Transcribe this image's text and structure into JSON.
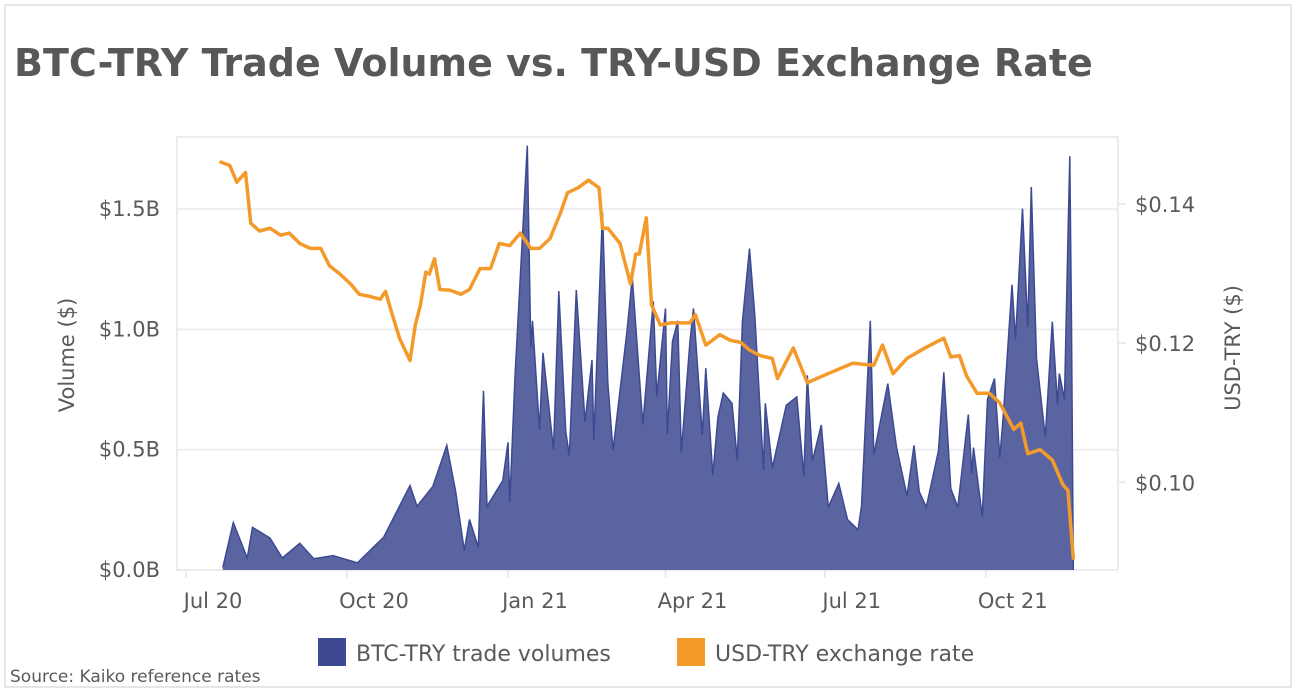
{
  "chart_data": {
    "type": "area+line",
    "title": "BTC-TRY Trade Volume vs. TRY-USD Exchange Rate",
    "source": "Source: Kaiko reference rates",
    "x_ticks": [
      {
        "date": "2020-07-01",
        "label": "Jul 20"
      },
      {
        "date": "2020-10-01",
        "label": "Oct 20"
      },
      {
        "date": "2021-01-01",
        "label": "Jan 21"
      },
      {
        "date": "2021-04-01",
        "label": "Apr 21"
      },
      {
        "date": "2021-07-01",
        "label": "Jul 21"
      },
      {
        "date": "2021-10-01",
        "label": "Oct 21"
      }
    ],
    "y_left": {
      "label": "Volume ($)",
      "unit": "billion USD",
      "range": [
        0,
        1.8
      ],
      "ticks": [
        {
          "v": 0,
          "label": "$0.0B"
        },
        {
          "v": 0.5,
          "label": "$0.5B"
        },
        {
          "v": 1.0,
          "label": "$1.0B"
        },
        {
          "v": 1.5,
          "label": "$1.5B"
        }
      ]
    },
    "y_right": {
      "label": "USD-TRY ($)",
      "range": [
        0.0874,
        0.1496
      ],
      "ticks": [
        {
          "v": 0.1,
          "label": "$0.10"
        },
        {
          "v": 0.12,
          "label": "$0.12"
        },
        {
          "v": 0.14,
          "label": "$0.14"
        }
      ]
    },
    "grid": true,
    "legend_position": "bottom",
    "series": [
      {
        "name": "BTC-TRY trade volumes",
        "type": "area",
        "axis": "left",
        "color": "#3d4a93",
        "fill": "#5a64a0",
        "points": [
          [
            "2020-07-22",
            0.01
          ],
          [
            "2020-07-28",
            0.197
          ],
          [
            "2020-08-05",
            0.05
          ],
          [
            "2020-08-08",
            0.177
          ],
          [
            "2020-08-18",
            0.133
          ],
          [
            "2020-08-25",
            0.05
          ],
          [
            "2020-09-04",
            0.111
          ],
          [
            "2020-09-12",
            0.047
          ],
          [
            "2020-09-23",
            0.06
          ],
          [
            "2020-10-07",
            0.03
          ],
          [
            "2020-10-22",
            0.137
          ],
          [
            "2020-10-28",
            0.223
          ],
          [
            "2020-11-06",
            0.351
          ],
          [
            "2020-11-10",
            0.265
          ],
          [
            "2020-11-19",
            0.347
          ],
          [
            "2020-11-27",
            0.518
          ],
          [
            "2020-12-02",
            0.33
          ],
          [
            "2020-12-07",
            0.081
          ],
          [
            "2020-12-10",
            0.21
          ],
          [
            "2020-12-15",
            0.094
          ],
          [
            "2020-12-18",
            0.745
          ],
          [
            "2020-12-20",
            0.265
          ],
          [
            "2020-12-29",
            0.372
          ],
          [
            "2021-01-01",
            0.531
          ],
          [
            "2021-01-02",
            0.282
          ],
          [
            "2021-01-05",
            0.805
          ],
          [
            "2021-01-12",
            1.764
          ],
          [
            "2021-01-14",
            0.925
          ],
          [
            "2021-01-15",
            1.036
          ],
          [
            "2021-01-19",
            0.582
          ],
          [
            "2021-01-21",
            0.903
          ],
          [
            "2021-01-27",
            0.5
          ],
          [
            "2021-01-30",
            1.16
          ],
          [
            "2021-02-03",
            0.574
          ],
          [
            "2021-02-05",
            0.475
          ],
          [
            "2021-02-09",
            1.164
          ],
          [
            "2021-02-14",
            0.616
          ],
          [
            "2021-02-18",
            0.873
          ],
          [
            "2021-02-19",
            0.539
          ],
          [
            "2021-02-24",
            1.486
          ],
          [
            "2021-02-27",
            0.779
          ],
          [
            "2021-03-02",
            0.497
          ],
          [
            "2021-03-10",
            0.993
          ],
          [
            "2021-03-13",
            1.216
          ],
          [
            "2021-03-19",
            0.604
          ],
          [
            "2021-03-25",
            1.117
          ],
          [
            "2021-03-27",
            0.723
          ],
          [
            "2021-04-01",
            1.087
          ],
          [
            "2021-04-02",
            0.565
          ],
          [
            "2021-04-05",
            0.951
          ],
          [
            "2021-04-08",
            1.036
          ],
          [
            "2021-04-10",
            0.488
          ],
          [
            "2021-04-15",
            0.951
          ],
          [
            "2021-04-17",
            1.087
          ],
          [
            "2021-04-22",
            0.561
          ],
          [
            "2021-04-24",
            0.839
          ],
          [
            "2021-04-28",
            0.394
          ],
          [
            "2021-05-01",
            0.637
          ],
          [
            "2021-05-04",
            0.736
          ],
          [
            "2021-05-09",
            0.693
          ],
          [
            "2021-05-12",
            0.458
          ],
          [
            "2021-05-15",
            1.036
          ],
          [
            "2021-05-19",
            1.336
          ],
          [
            "2021-05-22",
            1.058
          ],
          [
            "2021-05-27",
            0.415
          ],
          [
            "2021-05-28",
            0.693
          ],
          [
            "2021-06-01",
            0.424
          ],
          [
            "2021-06-09",
            0.685
          ],
          [
            "2021-06-15",
            0.719
          ],
          [
            "2021-06-19",
            0.39
          ],
          [
            "2021-06-21",
            0.809
          ],
          [
            "2021-06-24",
            0.454
          ],
          [
            "2021-06-29",
            0.603
          ],
          [
            "2021-07-03",
            0.261
          ],
          [
            "2021-07-09",
            0.36
          ],
          [
            "2021-07-14",
            0.21
          ],
          [
            "2021-07-20",
            0.167
          ],
          [
            "2021-07-22",
            0.265
          ],
          [
            "2021-07-27",
            1.036
          ],
          [
            "2021-07-29",
            0.478
          ],
          [
            "2021-08-06",
            0.775
          ],
          [
            "2021-08-11",
            0.51
          ],
          [
            "2021-08-17",
            0.308
          ],
          [
            "2021-08-21",
            0.518
          ],
          [
            "2021-08-24",
            0.325
          ],
          [
            "2021-08-28",
            0.261
          ],
          [
            "2021-09-04",
            0.496
          ],
          [
            "2021-09-07",
            0.822
          ],
          [
            "2021-09-11",
            0.338
          ],
          [
            "2021-09-15",
            0.261
          ],
          [
            "2021-09-21",
            0.646
          ],
          [
            "2021-09-23",
            0.402
          ],
          [
            "2021-09-24",
            0.509
          ],
          [
            "2021-09-29",
            0.223
          ],
          [
            "2021-10-02",
            0.709
          ],
          [
            "2021-10-06",
            0.796
          ],
          [
            "2021-10-09",
            0.467
          ],
          [
            "2021-10-11",
            0.642
          ],
          [
            "2021-10-16",
            1.186
          ],
          [
            "2021-10-18",
            0.959
          ],
          [
            "2021-10-22",
            1.502
          ],
          [
            "2021-10-25",
            1.01
          ],
          [
            "2021-10-27",
            1.592
          ],
          [
            "2021-10-30",
            0.881
          ],
          [
            "2021-11-04",
            0.552
          ],
          [
            "2021-11-08",
            1.032
          ],
          [
            "2021-11-11",
            0.689
          ],
          [
            "2021-11-12",
            0.817
          ],
          [
            "2021-11-15",
            0.71
          ],
          [
            "2021-11-17",
            1.39
          ],
          [
            "2021-11-18",
            1.72
          ],
          [
            "2021-11-19",
            1.02
          ],
          [
            "2021-11-20",
            0.0
          ]
        ]
      },
      {
        "name": "USD-TRY exchange rate",
        "type": "line",
        "axis": "right",
        "color": "#f39a2b",
        "points": [
          [
            "2020-07-21",
            0.146
          ],
          [
            "2020-07-26",
            0.1455
          ],
          [
            "2020-07-30",
            0.1431
          ],
          [
            "2020-08-04",
            0.1445
          ],
          [
            "2020-08-07",
            0.1372
          ],
          [
            "2020-08-12",
            0.1361
          ],
          [
            "2020-08-18",
            0.1365
          ],
          [
            "2020-08-24",
            0.1355
          ],
          [
            "2020-08-29",
            0.1358
          ],
          [
            "2020-09-04",
            0.1343
          ],
          [
            "2020-09-10",
            0.1336
          ],
          [
            "2020-09-16",
            0.1336
          ],
          [
            "2020-09-21",
            0.1311
          ],
          [
            "2020-09-27",
            0.1299
          ],
          [
            "2020-10-03",
            0.1285
          ],
          [
            "2020-10-08",
            0.127
          ],
          [
            "2020-10-14",
            0.1267
          ],
          [
            "2020-10-20",
            0.1263
          ],
          [
            "2020-10-23",
            0.1274
          ],
          [
            "2020-10-26",
            0.1248
          ],
          [
            "2020-10-31",
            0.1207
          ],
          [
            "2020-11-06",
            0.1175
          ],
          [
            "2020-11-09",
            0.1226
          ],
          [
            "2020-11-12",
            0.1255
          ],
          [
            "2020-11-15",
            0.1302
          ],
          [
            "2020-11-17",
            0.1299
          ],
          [
            "2020-11-20",
            0.1321
          ],
          [
            "2020-11-23",
            0.1277
          ],
          [
            "2020-11-29",
            0.1276
          ],
          [
            "2020-12-05",
            0.127
          ],
          [
            "2020-12-10",
            0.1277
          ],
          [
            "2020-12-16",
            0.1307
          ],
          [
            "2020-12-22",
            0.1307
          ],
          [
            "2020-12-27",
            0.1343
          ],
          [
            "2021-01-02",
            0.134
          ],
          [
            "2021-01-08",
            0.1358
          ],
          [
            "2021-01-14",
            0.1336
          ],
          [
            "2021-01-19",
            0.1336
          ],
          [
            "2021-01-25",
            0.135
          ],
          [
            "2021-01-31",
            0.1387
          ],
          [
            "2021-02-04",
            0.1416
          ],
          [
            "2021-02-10",
            0.1423
          ],
          [
            "2021-02-16",
            0.1434
          ],
          [
            "2021-02-22",
            0.1423
          ],
          [
            "2021-02-24",
            0.1365
          ],
          [
            "2021-02-27",
            0.1365
          ],
          [
            "2021-03-06",
            0.1343
          ],
          [
            "2021-03-12",
            0.1285
          ],
          [
            "2021-03-15",
            0.1328
          ],
          [
            "2021-03-17",
            0.1328
          ],
          [
            "2021-03-21",
            0.138
          ],
          [
            "2021-03-24",
            0.1255
          ],
          [
            "2021-03-29",
            0.1226
          ],
          [
            "2021-04-04",
            0.1229
          ],
          [
            "2021-04-15",
            0.1229
          ],
          [
            "2021-04-18",
            0.1241
          ],
          [
            "2021-04-24",
            0.1197
          ],
          [
            "2021-05-02",
            0.1212
          ],
          [
            "2021-05-08",
            0.1204
          ],
          [
            "2021-05-14",
            0.1201
          ],
          [
            "2021-05-19",
            0.119
          ],
          [
            "2021-05-25",
            0.1182
          ],
          [
            "2021-06-01",
            0.1178
          ],
          [
            "2021-06-04",
            0.1149
          ],
          [
            "2021-06-13",
            0.1193
          ],
          [
            "2021-06-21",
            0.1143
          ],
          [
            "2021-06-30",
            0.1153
          ],
          [
            "2021-07-17",
            0.1171
          ],
          [
            "2021-07-29",
            0.1168
          ],
          [
            "2021-08-03",
            0.1197
          ],
          [
            "2021-08-09",
            0.1156
          ],
          [
            "2021-08-17",
            0.1178
          ],
          [
            "2021-08-28",
            0.1194
          ],
          [
            "2021-09-07",
            0.1207
          ],
          [
            "2021-09-11",
            0.118
          ],
          [
            "2021-09-16",
            0.1182
          ],
          [
            "2021-09-20",
            0.1153
          ],
          [
            "2021-09-26",
            0.1128
          ],
          [
            "2021-10-03",
            0.1128
          ],
          [
            "2021-10-09",
            0.1114
          ],
          [
            "2021-10-17",
            0.1076
          ],
          [
            "2021-10-21",
            0.1085
          ],
          [
            "2021-10-25",
            0.1041
          ],
          [
            "2021-11-01",
            0.1047
          ],
          [
            "2021-11-08",
            0.1032
          ],
          [
            "2021-11-14",
            0.0997
          ],
          [
            "2021-11-17",
            0.0988
          ],
          [
            "2021-11-20",
            0.0891
          ]
        ]
      }
    ]
  }
}
